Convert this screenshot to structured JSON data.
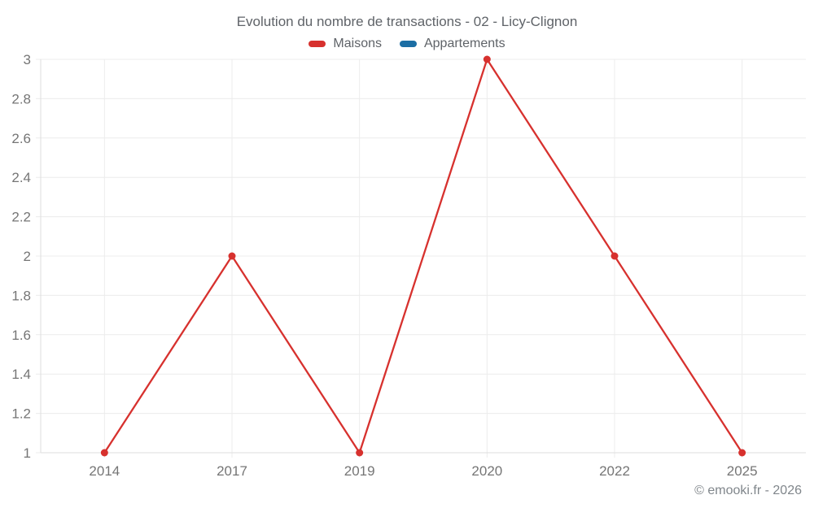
{
  "chart_data": {
    "type": "line",
    "title": "Evolution du nombre de transactions - 02 - Licy-Clignon",
    "categories": [
      "2014",
      "2017",
      "2019",
      "2020",
      "2022",
      "2025"
    ],
    "series": [
      {
        "name": "Maisons",
        "color": "#d7312e",
        "values": [
          1,
          2,
          1,
          3,
          2,
          1
        ]
      },
      {
        "name": "Appartements",
        "color": "#1c6ea4",
        "values": []
      }
    ],
    "xlabel": "",
    "ylabel": "",
    "ylim": [
      1,
      3
    ],
    "ytick_step": 0.2,
    "ytick_labels": [
      "1",
      "1.2",
      "1.4",
      "1.6",
      "1.8",
      "2",
      "2.2",
      "2.4",
      "2.6",
      "2.8",
      "3"
    ],
    "grid": true,
    "legend_position": "top",
    "marker_radius": 4.5,
    "line_width": 2.3
  },
  "footer": {
    "text": "© emooki.fr - 2026"
  },
  "colors": {
    "grid": "#ececec",
    "axis": "#dedede",
    "tick_label": "#757575",
    "title_text": "#5f6368",
    "background": "#ffffff"
  }
}
